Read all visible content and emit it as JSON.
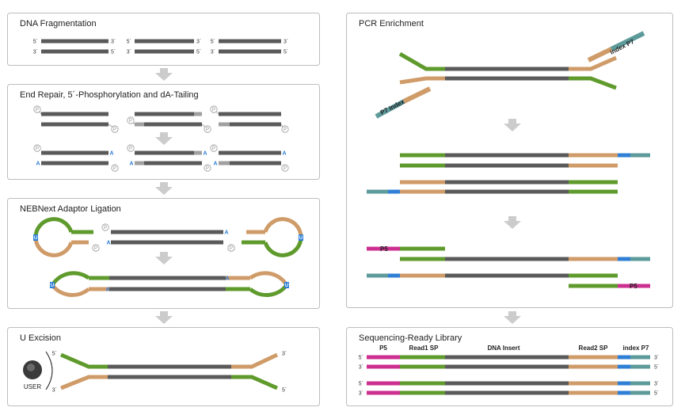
{
  "colors": {
    "insert": "#5a5a5a",
    "green": "#5f9a2c",
    "tan": "#cf9b68",
    "teal": "#5d9a9a",
    "blue": "#2f7fd6",
    "magenta": "#cc2f8f",
    "gray_end": "#a0a0a0",
    "arrow": "#cccccc",
    "panel_border": "#bdbdbd"
  },
  "panels": {
    "fragmentation": {
      "title": "DNA Fragmentation"
    },
    "end_repair": {
      "title": "End Repair, 5´-Phosphorylation and dA-Tailing"
    },
    "ligation": {
      "title": "NEBNext Adaptor Ligation"
    },
    "u_excision": {
      "title": "U Excision",
      "enzyme_label": "USER"
    },
    "pcr": {
      "title": "PCR Enrichment",
      "primer_left": "P7 index",
      "primer_right": "index P7",
      "p5_label": "P5"
    },
    "library": {
      "title": "Sequencing-Ready Library",
      "headers": {
        "p5": "P5",
        "read1": "Read1 SP",
        "insert": "DNA Insert",
        "read2": "Read2 SP",
        "index_p7": "index P7"
      }
    }
  },
  "strand_ends": {
    "five": "5´",
    "three": "3´"
  },
  "symbols": {
    "phosphate": "P",
    "a_tail": "A",
    "uracil": "U"
  }
}
